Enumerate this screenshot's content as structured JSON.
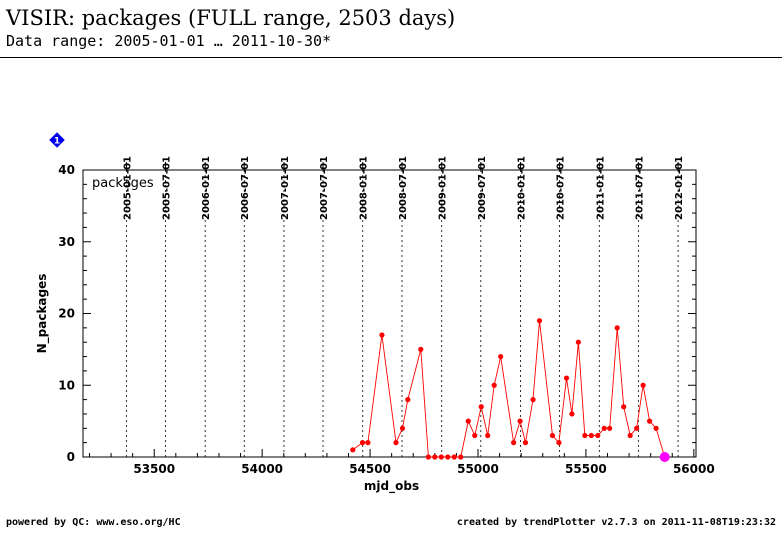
{
  "header": {
    "title": "VISIR: packages (FULL range, 2503 days)",
    "subtitle": "Data range: 2005-01-01 … 2011-10-30*"
  },
  "footer": {
    "left": "powered by QC: www.eso.org/HC",
    "right": "created by trendPlotter v2.7.3 on 2011-11-08T19:23:32"
  },
  "marker_label": "1",
  "colors": {
    "series": "#ff0000",
    "last_point": "#ff00ff",
    "marker": "#0000ee",
    "grid": "#000000"
  },
  "chart_data": {
    "type": "line",
    "panel_label": "packages",
    "xlabel": "mjd_obs",
    "ylabel": "N_packages",
    "xlim": [
      53170,
      56010
    ],
    "ylim": [
      0,
      40
    ],
    "x_ticks": [
      53500,
      54000,
      54500,
      55000,
      55500,
      56000
    ],
    "y_ticks": [
      0,
      10,
      20,
      30,
      40
    ],
    "date_ticks": [
      {
        "label": "2005-01-01",
        "mjd": 53371
      },
      {
        "label": "2005-07-01",
        "mjd": 53552
      },
      {
        "label": "2006-01-01",
        "mjd": 53736
      },
      {
        "label": "2006-07-01",
        "mjd": 53917
      },
      {
        "label": "2007-01-01",
        "mjd": 54101
      },
      {
        "label": "2007-07-01",
        "mjd": 54282
      },
      {
        "label": "2008-01-01",
        "mjd": 54466
      },
      {
        "label": "2008-07-01",
        "mjd": 54648
      },
      {
        "label": "2009-01-01",
        "mjd": 54832
      },
      {
        "label": "2009-07-01",
        "mjd": 55013
      },
      {
        "label": "2010-01-01",
        "mjd": 55197
      },
      {
        "label": "2010-07-01",
        "mjd": 55378
      },
      {
        "label": "2011-01-01",
        "mjd": 55562
      },
      {
        "label": "2011-07-01",
        "mjd": 55743
      },
      {
        "label": "2012-01-01",
        "mjd": 55927
      }
    ],
    "series": [
      {
        "x": [
          54420,
          54465,
          54490,
          54555,
          54620,
          54650,
          54675,
          54735,
          54770,
          54800,
          54830,
          54860,
          54890,
          54920,
          54955,
          54985,
          55015,
          55045,
          55075,
          55105,
          55165,
          55195,
          55220,
          55255,
          55285,
          55345,
          55375,
          55410,
          55435,
          55465,
          55495,
          55525,
          55555,
          55585,
          55610,
          55645,
          55675,
          55705,
          55735,
          55765,
          55795,
          55825,
          55865
        ],
        "y": [
          1,
          2,
          2,
          17,
          2,
          4,
          8,
          15,
          0,
          0,
          0,
          0,
          0,
          0,
          5,
          3,
          7,
          3,
          10,
          14,
          2,
          5,
          2,
          8,
          19,
          3,
          2,
          11,
          6,
          16,
          3,
          3,
          3,
          4,
          4,
          18,
          7,
          3,
          4,
          10,
          5,
          4,
          0
        ]
      }
    ]
  }
}
